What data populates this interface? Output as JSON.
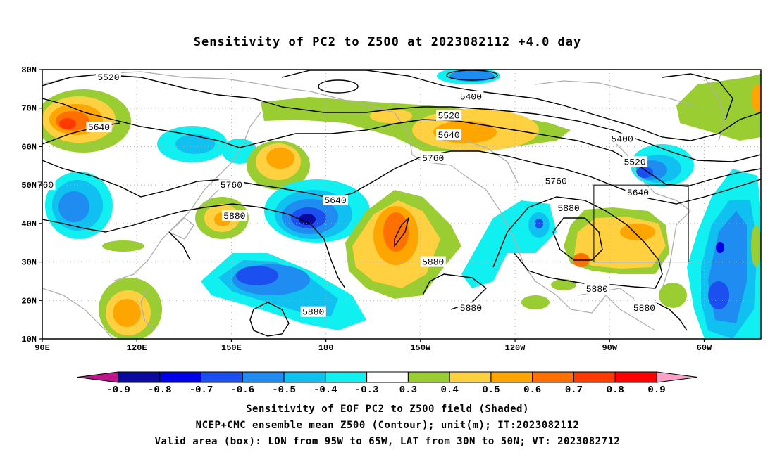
{
  "title": "Sensitivity of PC2 to Z500 at 2023082112 +4.0 day",
  "captions": [
    "Sensitivity of EOF PC2 to Z500 field (Shaded)",
    "NCEP+CMC ensemble mean Z500 (Contour); unit(m); IT:2023082112",
    "Valid area (box): LON from 95W to 65W, LAT from 30N to 50N; VT: 2023082712"
  ],
  "axes": {
    "lat_labels": [
      "80N",
      "70N",
      "60N",
      "50N",
      "40N",
      "30N",
      "20N",
      "10N"
    ],
    "lon_labels": [
      "90E",
      "120E",
      "150E",
      "180",
      "150W",
      "120W",
      "90W",
      "60W"
    ]
  },
  "colorbar": {
    "labels": [
      "-0.9",
      "-0.8",
      "-0.7",
      "-0.6",
      "-0.5",
      "-0.4",
      "-0.3",
      "0.3",
      "0.4",
      "0.5",
      "0.6",
      "0.7",
      "0.8",
      "0.9"
    ],
    "colors": [
      "#c2148a",
      "#0a0aa0",
      "#0000e6",
      "#1b4ff0",
      "#1e8cf0",
      "#0fc0f0",
      "#10f0f0",
      "#ffffff",
      "#9acd32",
      "#ffd040",
      "#ffa500",
      "#ff7000",
      "#ff3a00",
      "#ff0000",
      "#ffa0c8"
    ]
  },
  "contour_labels": [
    {
      "text": "5520",
      "lon": 111,
      "lat": 78
    },
    {
      "text": "5640",
      "lon": 108,
      "lat": 65
    },
    {
      "text": "5400",
      "lon": 226,
      "lat": 73
    },
    {
      "text": "5520",
      "lon": 219,
      "lat": 68
    },
    {
      "text": "5640",
      "lon": 219,
      "lat": 63
    },
    {
      "text": "5760",
      "lon": 214,
      "lat": 57
    },
    {
      "text": "5760",
      "lon": 253,
      "lat": 51
    },
    {
      "text": "5400",
      "lon": 274,
      "lat": 62
    },
    {
      "text": "5520",
      "lon": 278,
      "lat": 56
    },
    {
      "text": "5640",
      "lon": 279,
      "lat": 48
    },
    {
      "text": "5760",
      "lon": 150,
      "lat": 50
    },
    {
      "text": "5640",
      "lon": 183,
      "lat": 46
    },
    {
      "text": "5880",
      "lon": 151,
      "lat": 42
    },
    {
      "text": "5880",
      "lon": 214,
      "lat": 30
    },
    {
      "text": "5880",
      "lon": 176,
      "lat": 17
    },
    {
      "text": "5880",
      "lon": 226,
      "lat": 18
    },
    {
      "text": "5880",
      "lon": 257,
      "lat": 44
    },
    {
      "text": "5880",
      "lon": 266,
      "lat": 23
    },
    {
      "text": "5880",
      "lon": 281,
      "lat": 18
    },
    {
      "text": "760",
      "lon": 91,
      "lat": 50
    }
  ],
  "valid_box": {
    "lon_min": 265,
    "lon_max": 295,
    "lat_min": 30,
    "lat_max": 50
  }
}
